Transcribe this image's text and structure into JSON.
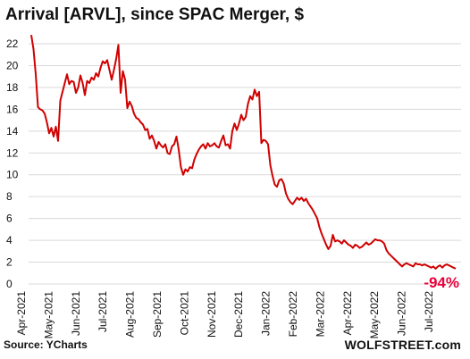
{
  "header": {
    "title": "Arrival [ARVL], since SPAC Merger, $"
  },
  "footer": {
    "source": "Source: YCharts",
    "brand": "WOLFSTREET.com"
  },
  "colors": {
    "line": "#d00000",
    "grid": "#d9d9d9",
    "annotation": "#e8003a"
  },
  "chart_data": {
    "type": "line",
    "title": "Arrival [ARVL], since SPAC Merger, $",
    "xlabel": "",
    "ylabel": "",
    "ylim": [
      0,
      22
    ],
    "yticks": [
      0,
      2,
      4,
      6,
      8,
      10,
      12,
      14,
      16,
      18,
      20,
      22
    ],
    "grid": "horizontal",
    "xticks": [
      "Apr-2021",
      "May-2021",
      "Jun-2021",
      "Jul-2021",
      "Aug-2021",
      "Sep-2021",
      "Oct-2021",
      "Nov-2021",
      "Dec-2021",
      "Jan-2022",
      "Feb-2022",
      "Mar-2022",
      "Apr-2022",
      "May-2022",
      "Jun-2022",
      "Jul-2022"
    ],
    "annotation": "-94%",
    "series": [
      {
        "values": [
          22.8,
          21.5,
          19.2,
          16.2,
          16.0,
          15.9,
          15.6,
          14.8,
          13.8,
          14.3,
          13.5,
          14.4,
          13.1,
          16.8,
          17.6,
          18.4,
          19.2,
          18.3,
          18.6,
          18.5,
          17.5,
          18.0,
          19.1,
          18.4,
          17.3,
          18.6,
          18.4,
          18.9,
          18.7,
          19.3,
          19.0,
          19.8,
          20.4,
          20.2,
          20.5,
          19.6,
          18.7,
          19.6,
          20.6,
          21.9,
          17.5,
          19.5,
          18.7,
          16.1,
          16.7,
          16.3,
          15.6,
          15.2,
          15.1,
          14.8,
          14.6,
          14.1,
          14.2,
          13.3,
          13.6,
          13.1,
          12.4,
          13.0,
          12.7,
          12.5,
          12.8,
          12.0,
          11.9,
          12.6,
          12.8,
          13.5,
          12.3,
          10.7,
          10.0,
          10.5,
          10.3,
          10.7,
          10.6,
          11.4,
          11.9,
          12.3,
          12.6,
          12.8,
          12.4,
          12.9,
          12.6,
          12.7,
          12.9,
          12.6,
          12.5,
          13.1,
          13.6,
          12.7,
          12.8,
          12.4,
          14.0,
          14.7,
          14.1,
          14.7,
          15.5,
          15.0,
          15.3,
          16.5,
          17.2,
          16.9,
          17.8,
          17.2,
          17.6,
          12.9,
          13.2,
          13.1,
          12.8,
          10.9,
          9.9,
          9.1,
          8.9,
          9.5,
          9.6,
          9.2,
          8.3,
          7.8,
          7.5,
          7.3,
          7.6,
          7.9,
          7.7,
          7.9,
          7.6,
          7.8,
          7.4,
          7.1,
          6.8,
          6.4,
          6.0,
          5.2,
          4.6,
          4.1,
          3.6,
          3.2,
          3.5,
          4.5,
          3.9,
          4.0,
          3.9,
          3.7,
          4.0,
          3.8,
          3.6,
          3.5,
          3.3,
          3.6,
          3.5,
          3.3,
          3.4,
          3.6,
          3.8,
          3.6,
          3.7,
          3.9,
          4.1,
          4.0,
          4.0,
          3.9,
          3.7,
          3.1,
          2.8,
          2.6,
          2.4,
          2.2,
          2.0,
          1.8,
          1.6,
          1.8,
          1.9,
          1.8,
          1.7,
          1.6,
          1.9,
          1.8,
          1.8,
          1.7,
          1.8,
          1.7,
          1.6,
          1.5,
          1.6,
          1.4,
          1.6,
          1.7,
          1.5,
          1.7,
          1.8,
          1.7,
          1.6,
          1.5,
          1.4
        ]
      }
    ]
  }
}
